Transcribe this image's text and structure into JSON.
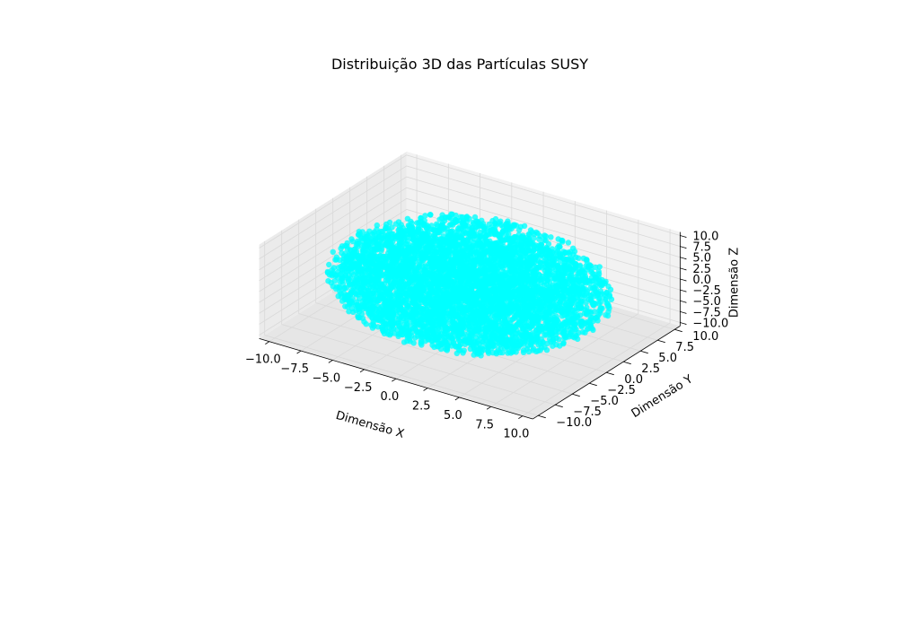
{
  "chart_data": {
    "type": "scatter",
    "title": "Distribuição 3D das Partículas SUSY",
    "xlabel": "Dimensão X",
    "ylabel": "Dimensão Y",
    "zlabel": "Dimensão Z",
    "xlim": [
      -10,
      10
    ],
    "ylim": [
      -10,
      10
    ],
    "zlim": [
      -10,
      10
    ],
    "x_ticks": [
      "−10.0",
      "−7.5",
      "−5.0",
      "−2.5",
      "0.0",
      "2.5",
      "5.0",
      "7.5",
      "10.0"
    ],
    "y_ticks": [
      "−10.0",
      "−7.5",
      "−5.0",
      "−2.5",
      "0.0",
      "2.5",
      "5.0",
      "7.5",
      "10.0"
    ],
    "z_ticks": [
      "−10.0",
      "−7.5",
      "−5.0",
      "−2.5",
      "0.0",
      "2.5",
      "5.0",
      "7.5",
      "10.0"
    ],
    "tick_values": [
      -10,
      -7.5,
      -5,
      -2.5,
      0,
      2.5,
      5,
      7.5,
      10
    ],
    "point_color": "#00ffff",
    "point_count_shown": 5000,
    "distribution": "uniform within sphere of radius 10",
    "grid": true,
    "pane_color": "#f2f2f2",
    "grid_color": "#d9d9d9"
  }
}
